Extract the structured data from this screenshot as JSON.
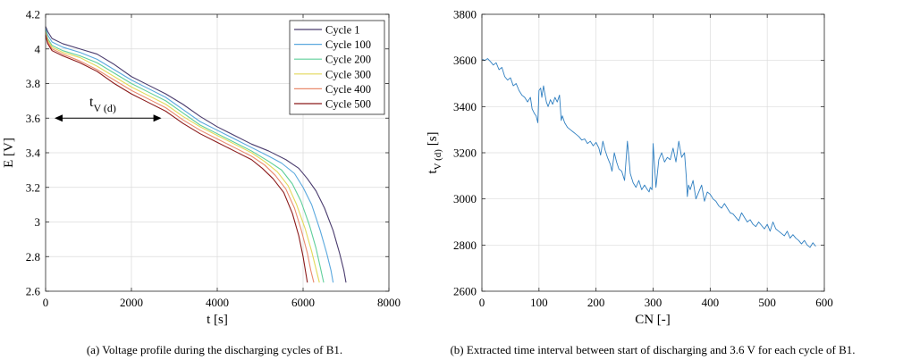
{
  "chart_data": [
    {
      "type": "line",
      "xlabel": "t [s]",
      "ylabel": "E [V]",
      "xlim": [
        0,
        8000
      ],
      "ylim": [
        2.6,
        4.2
      ],
      "xticks": [
        0,
        2000,
        4000,
        6000,
        8000
      ],
      "yticks": [
        2.6,
        2.8,
        3.0,
        3.2,
        3.4,
        3.6,
        3.8,
        4.0,
        4.2
      ],
      "xtick_labels": [
        "0",
        "2000",
        "4000",
        "6000",
        "8000"
      ],
      "ytick_labels": [
        "2.6",
        "2.8",
        "3",
        "3.2",
        "3.4",
        "3.6",
        "3.8",
        "4",
        "4.2"
      ],
      "grid": true,
      "legend_position": "top-right",
      "caption": "(a) Voltage profile during the discharging cycles of B1.",
      "annotation": {
        "label_main": "t",
        "label_sub": "V (d)",
        "arrow_from": [
          0,
          3.6
        ],
        "arrow_to": [
          2700,
          3.6
        ]
      },
      "series": [
        {
          "name": "Cycle 1",
          "color": "#4a3c6e",
          "x": [
            0,
            50,
            150,
            400,
            800,
            1200,
            1600,
            2000,
            2400,
            2800,
            3200,
            3600,
            4000,
            4400,
            4800,
            5200,
            5600,
            5900,
            6100,
            6300,
            6500,
            6700,
            6850,
            6950,
            7000
          ],
          "y": [
            4.13,
            4.1,
            4.06,
            4.03,
            4.0,
            3.97,
            3.91,
            3.84,
            3.79,
            3.74,
            3.68,
            3.61,
            3.55,
            3.5,
            3.45,
            3.41,
            3.36,
            3.31,
            3.25,
            3.18,
            3.08,
            2.95,
            2.82,
            2.72,
            2.65
          ]
        },
        {
          "name": "Cycle 100",
          "color": "#5aa8de",
          "x": [
            0,
            50,
            150,
            400,
            800,
            1200,
            1600,
            2000,
            2400,
            2800,
            3200,
            3600,
            4000,
            4400,
            4800,
            5200,
            5500,
            5800,
            6000,
            6200,
            6400,
            6550,
            6650,
            6700
          ],
          "y": [
            4.12,
            4.08,
            4.04,
            4.01,
            3.98,
            3.94,
            3.88,
            3.82,
            3.77,
            3.72,
            3.65,
            3.58,
            3.53,
            3.48,
            3.43,
            3.38,
            3.34,
            3.28,
            3.2,
            3.1,
            2.95,
            2.82,
            2.72,
            2.65
          ]
        },
        {
          "name": "Cycle 200",
          "color": "#5fcf9a",
          "x": [
            0,
            50,
            150,
            400,
            800,
            1200,
            1600,
            2000,
            2400,
            2800,
            3200,
            3600,
            4000,
            4400,
            4800,
            5200,
            5500,
            5750,
            5950,
            6150,
            6300,
            6400,
            6480
          ],
          "y": [
            4.11,
            4.06,
            4.02,
            3.99,
            3.96,
            3.92,
            3.86,
            3.8,
            3.75,
            3.7,
            3.63,
            3.56,
            3.51,
            3.46,
            3.41,
            3.35,
            3.3,
            3.22,
            3.12,
            2.98,
            2.85,
            2.74,
            2.65
          ]
        },
        {
          "name": "Cycle 300",
          "color": "#e3d95a",
          "x": [
            0,
            50,
            150,
            400,
            800,
            1200,
            1600,
            2000,
            2400,
            2800,
            3200,
            3600,
            4000,
            4400,
            4800,
            5100,
            5400,
            5650,
            5850,
            6050,
            6200,
            6300,
            6380
          ],
          "y": [
            4.1,
            4.05,
            4.01,
            3.98,
            3.95,
            3.9,
            3.84,
            3.78,
            3.73,
            3.68,
            3.61,
            3.55,
            3.5,
            3.45,
            3.4,
            3.35,
            3.29,
            3.21,
            3.1,
            2.96,
            2.83,
            2.73,
            2.65
          ]
        },
        {
          "name": "Cycle 400",
          "color": "#e98a6e",
          "x": [
            0,
            50,
            150,
            400,
            800,
            1200,
            1600,
            2000,
            2400,
            2800,
            3200,
            3600,
            4000,
            4400,
            4800,
            5100,
            5350,
            5600,
            5800,
            5950,
            6100,
            6180,
            6250
          ],
          "y": [
            4.09,
            4.04,
            4.0,
            3.97,
            3.93,
            3.88,
            3.82,
            3.76,
            3.71,
            3.66,
            3.59,
            3.53,
            3.48,
            3.43,
            3.38,
            3.33,
            3.27,
            3.19,
            3.08,
            2.96,
            2.82,
            2.72,
            2.65
          ]
        },
        {
          "name": "Cycle 500",
          "color": "#8b1a1a",
          "x": [
            0,
            50,
            150,
            400,
            800,
            1200,
            1600,
            2000,
            2400,
            2800,
            3200,
            3600,
            4000,
            4400,
            4800,
            5050,
            5300,
            5550,
            5750,
            5900,
            6000,
            6060,
            6100
          ],
          "y": [
            4.08,
            4.03,
            3.99,
            3.96,
            3.92,
            3.87,
            3.8,
            3.74,
            3.69,
            3.64,
            3.57,
            3.51,
            3.46,
            3.41,
            3.36,
            3.31,
            3.25,
            3.17,
            3.05,
            2.92,
            2.8,
            2.71,
            2.65
          ]
        }
      ]
    },
    {
      "type": "line",
      "xlabel": "CN [-]",
      "ylabel_main": "t",
      "ylabel_sub": "V (d)",
      "ylabel_unit": " [s]",
      "xlim": [
        0,
        600
      ],
      "ylim": [
        2600,
        3800
      ],
      "xticks": [
        0,
        100,
        200,
        300,
        400,
        500,
        600
      ],
      "yticks": [
        2600,
        2800,
        3000,
        3200,
        3400,
        3600,
        3800
      ],
      "xtick_labels": [
        "0",
        "100",
        "200",
        "300",
        "400",
        "500",
        "600"
      ],
      "ytick_labels": [
        "2600",
        "2800",
        "3000",
        "3200",
        "3400",
        "3600",
        "3800"
      ],
      "grid": true,
      "caption": "(b) Extracted time interval between start of discharging and 3.6 V for each cycle of B1.",
      "series": [
        {
          "color": "#2f7fc1",
          "x": [
            1,
            5,
            10,
            15,
            20,
            25,
            30,
            35,
            40,
            45,
            50,
            55,
            60,
            65,
            70,
            75,
            80,
            85,
            88,
            92,
            95,
            98,
            100,
            103,
            105,
            108,
            110,
            113,
            116,
            120,
            124,
            128,
            132,
            136,
            139,
            141,
            145,
            150,
            155,
            160,
            165,
            170,
            175,
            180,
            185,
            190,
            195,
            200,
            205,
            208,
            212,
            216,
            220,
            225,
            228,
            232,
            236,
            240,
            245,
            250,
            255,
            260,
            265,
            270,
            275,
            280,
            285,
            290,
            293,
            295,
            298,
            300,
            305,
            310,
            315,
            320,
            325,
            330,
            335,
            340,
            345,
            350,
            355,
            358,
            360,
            362,
            365,
            370,
            375,
            380,
            385,
            390,
            395,
            400,
            405,
            410,
            415,
            420,
            425,
            430,
            435,
            440,
            445,
            450,
            455,
            460,
            465,
            470,
            475,
            480,
            485,
            490,
            495,
            500,
            505,
            510,
            515,
            520,
            525,
            530,
            535,
            540,
            545,
            550,
            555,
            560,
            565,
            570,
            575,
            580,
            583,
            585
          ],
          "y": [
            3605,
            3600,
            3608,
            3595,
            3580,
            3590,
            3560,
            3570,
            3530,
            3515,
            3525,
            3490,
            3500,
            3470,
            3450,
            3440,
            3420,
            3440,
            3390,
            3370,
            3360,
            3330,
            3470,
            3480,
            3440,
            3490,
            3460,
            3420,
            3400,
            3430,
            3410,
            3440,
            3420,
            3450,
            3340,
            3360,
            3330,
            3310,
            3300,
            3290,
            3280,
            3270,
            3255,
            3260,
            3240,
            3250,
            3230,
            3245,
            3220,
            3190,
            3250,
            3210,
            3180,
            3150,
            3120,
            3200,
            3160,
            3130,
            3120,
            3080,
            3250,
            3110,
            3070,
            3050,
            3080,
            3040,
            3060,
            3040,
            3030,
            3050,
            3040,
            3240,
            3050,
            3170,
            3200,
            3160,
            3180,
            3170,
            3220,
            3160,
            3250,
            3180,
            3200,
            3100,
            3010,
            3060,
            3040,
            3080,
            3000,
            3030,
            3060,
            2990,
            3030,
            3020,
            3000,
            2990,
            2970,
            2960,
            2980,
            2960,
            2940,
            2935,
            2920,
            2905,
            2940,
            2920,
            2900,
            2910,
            2890,
            2880,
            2900,
            2885,
            2870,
            2890,
            2860,
            2900,
            2870,
            2860,
            2850,
            2840,
            2860,
            2830,
            2845,
            2830,
            2820,
            2805,
            2820,
            2800,
            2790,
            2810,
            2800,
            2795
          ]
        }
      ]
    }
  ]
}
